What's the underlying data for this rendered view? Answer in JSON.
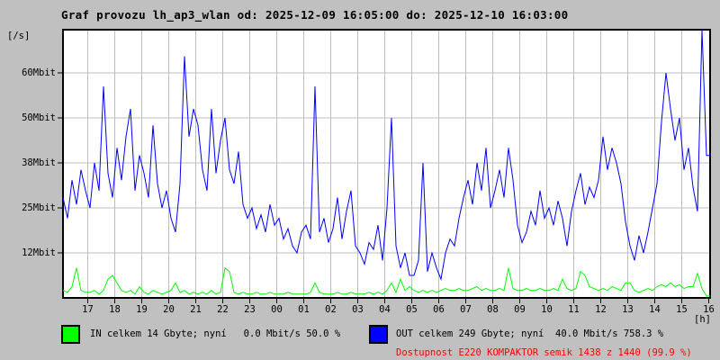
{
  "title": "Graf provozu lh_ap3_wlan od: 2025-12-09 16:05:00 do: 2025-12-10 16:03:00",
  "y_axis": {
    "unit_label": "[/s]"
  },
  "x_axis": {
    "unit_label": "[h]"
  },
  "legend": {
    "in_label": "IN celkem 14 Gbyte; nyní   0.0 Mbit/s 50.0 %",
    "out_label": "OUT celkem 249 Gbyte; nyní  40.0 Mbit/s 758.3 %",
    "availability": "Dostupnost E220 KOMPAKTOR semik 1438 z 1440 (99.9 %)"
  },
  "colors": {
    "background": "#c0c0c0",
    "plot_background": "#ffffff",
    "grid": "#bebebe",
    "border": "#000000",
    "in_series": "#00ff00",
    "out_series": "#0000ff",
    "availability_text": "#ff0000",
    "text": "#000000"
  },
  "chart_data": {
    "type": "line",
    "title": "Graf provozu lh_ap3_wlan od: 2025-12-09 16:05:00 do: 2025-12-10 16:03:00",
    "xlabel": "[h]",
    "ylabel": "[/s]",
    "x_tick_labels": [
      "17",
      "18",
      "19",
      "20",
      "21",
      "22",
      "23",
      "00",
      "01",
      "02",
      "03",
      "04",
      "05",
      "06",
      "07",
      "08",
      "09",
      "10",
      "11",
      "12",
      "13",
      "14",
      "15",
      "16"
    ],
    "y_ticks": [
      {
        "label": "60Mbit",
        "value": 60
      },
      {
        "label": "50Mbit",
        "value": 50
      },
      {
        "label": "38Mbit",
        "value": 38
      },
      {
        "label": "25Mbit",
        "value": 25
      },
      {
        "label": "12Mbit",
        "value": 12
      }
    ],
    "ylim_mbit": [
      0,
      73
    ],
    "sample_interval_minutes": 10,
    "grid": true,
    "legend_position": "bottom",
    "series": [
      {
        "name": "IN",
        "unit": "Mbit/s",
        "color": "#00ff00",
        "values": [
          2,
          1.5,
          3,
          8,
          2,
          1.5,
          1.5,
          2,
          1,
          2,
          5,
          6,
          4,
          2,
          1.5,
          2,
          1,
          3,
          1.5,
          1,
          2,
          1.5,
          1,
          1.5,
          2,
          4,
          1.5,
          2,
          1,
          1.5,
          1,
          1.5,
          1,
          2,
          1,
          1.5,
          8,
          7,
          1.5,
          1,
          1.5,
          1,
          1,
          1.5,
          1,
          1,
          1.5,
          1,
          1,
          1,
          1.5,
          1,
          1,
          1,
          1,
          1.5,
          4,
          1.5,
          1,
          1,
          1,
          1.5,
          1,
          1,
          1.5,
          1,
          1,
          1,
          1.5,
          1,
          1.5,
          1,
          2,
          4,
          1.5,
          5,
          2,
          3,
          2,
          1.5,
          2,
          1.5,
          2,
          1.5,
          2,
          2.5,
          2,
          2,
          2.5,
          2,
          2,
          2.5,
          3,
          2,
          2.5,
          2,
          2,
          2.5,
          2,
          8,
          2.5,
          2,
          2,
          2.5,
          2,
          2,
          2.5,
          2,
          2,
          2.5,
          2,
          5,
          2.5,
          2,
          2.5,
          7,
          6,
          3,
          2.5,
          2,
          2.5,
          2,
          3,
          2.5,
          2,
          4,
          4,
          2,
          1.5,
          2,
          2.5,
          2,
          3,
          3.5,
          3,
          4,
          3,
          3.5,
          2.5,
          3,
          3,
          6.5,
          2.5,
          0.5
        ]
      },
      {
        "name": "OUT",
        "unit": "Mbit/s",
        "color": "#0000ff",
        "values": [
          28,
          22,
          33,
          26,
          36,
          30,
          25,
          38,
          30,
          57,
          35,
          28,
          42,
          33,
          45,
          52,
          30,
          40,
          35,
          28,
          48,
          32,
          25,
          30,
          22,
          18,
          32,
          65,
          45,
          52,
          48,
          36,
          30,
          52,
          35,
          44,
          50,
          36,
          32,
          41,
          26,
          22,
          25,
          19,
          23,
          18,
          26,
          20,
          22,
          16,
          19,
          14,
          12,
          18,
          20,
          16,
          57,
          18,
          22,
          15,
          19,
          28,
          16,
          24,
          30,
          14,
          12,
          9,
          15,
          13,
          20,
          10,
          25,
          50,
          14,
          8,
          12,
          6,
          6,
          10,
          38,
          7,
          12,
          8,
          5,
          12,
          16,
          14,
          22,
          28,
          33,
          26,
          38,
          30,
          42,
          25,
          30,
          36,
          28,
          42,
          33,
          20,
          15,
          18,
          24,
          20,
          30,
          22,
          25,
          20,
          27,
          22,
          14,
          24,
          30,
          35,
          26,
          31,
          28,
          33,
          45,
          36,
          42,
          38,
          32,
          21,
          14,
          10,
          17,
          12,
          18,
          25,
          32,
          49,
          60,
          52,
          44,
          50,
          36,
          42,
          31,
          24,
          73,
          40
        ]
      }
    ]
  }
}
